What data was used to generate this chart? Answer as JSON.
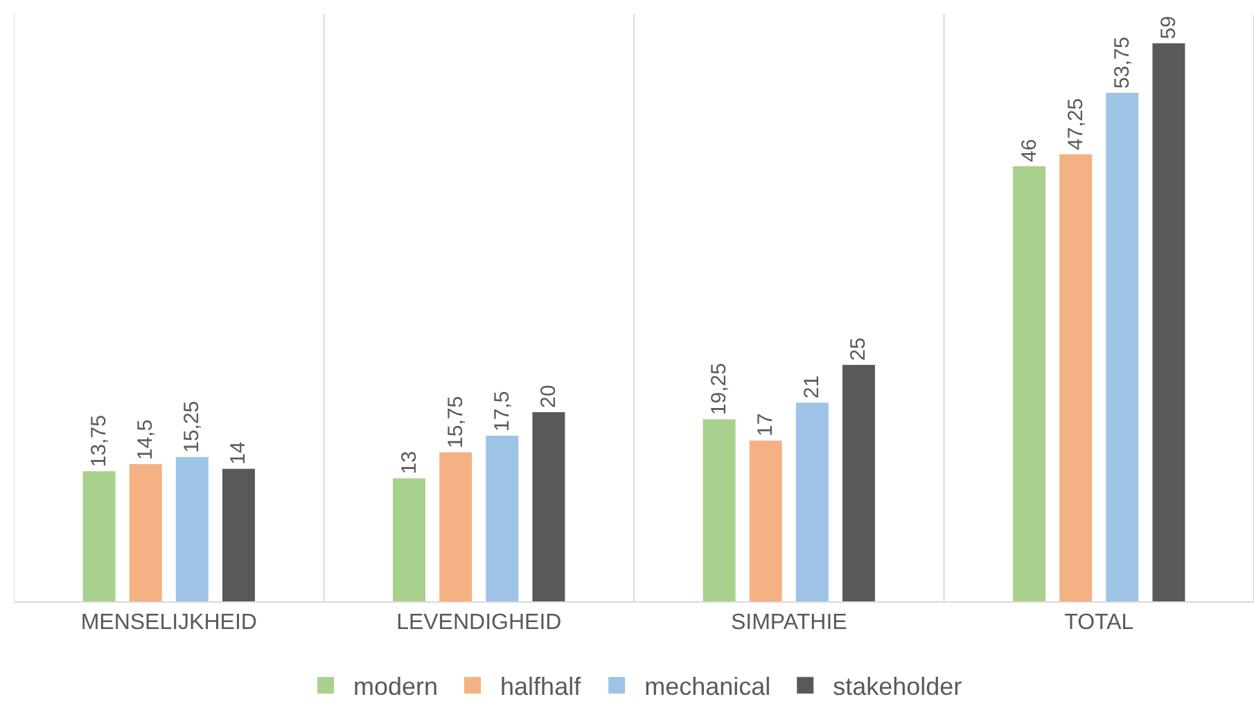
{
  "chart_data": {
    "type": "bar",
    "categories": [
      "MENSELIJKHEID",
      "LEVENDIGHEID",
      "SIMPATHIE",
      "TOTAL"
    ],
    "series": [
      {
        "name": "modern",
        "color": "#a9d18e",
        "values": [
          13.75,
          13,
          19.25,
          46
        ],
        "value_labels": [
          "13,75",
          "13",
          "19,25",
          "46"
        ]
      },
      {
        "name": "halfhalf",
        "color": "#f4b183",
        "values": [
          14.5,
          15.75,
          17,
          47.25
        ],
        "value_labels": [
          "14,5",
          "15,75",
          "17",
          "47,25"
        ]
      },
      {
        "name": "mechanical",
        "color": "#9dc3e6",
        "values": [
          15.25,
          17.5,
          21,
          53.75
        ],
        "value_labels": [
          "15,25",
          "17,5",
          "21",
          "53,75"
        ]
      },
      {
        "name": "stakeholder",
        "color": "#595959",
        "values": [
          14,
          20,
          25,
          59
        ],
        "value_labels": [
          "14",
          "20",
          "25",
          "59"
        ]
      }
    ],
    "tick_labels": "x",
    "grid": "x",
    "legend": "bottom"
  }
}
